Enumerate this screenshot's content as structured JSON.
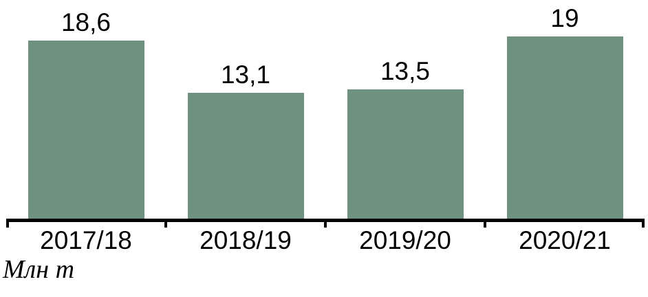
{
  "chart_data": {
    "type": "bar",
    "categories": [
      "2017/18",
      "2018/19",
      "2019/20",
      "2020/21"
    ],
    "values": [
      18.6,
      13.1,
      13.5,
      19
    ],
    "value_labels": [
      "18,6",
      "13,1",
      "13,5",
      "19"
    ],
    "title": "",
    "xlabel": "",
    "ylabel": "Млн т",
    "ylim": [
      0,
      22.8
    ],
    "grid": false,
    "legend": "none",
    "bar_color": "#6F9280",
    "axis_color": "#000000",
    "label_color": "#000000"
  }
}
